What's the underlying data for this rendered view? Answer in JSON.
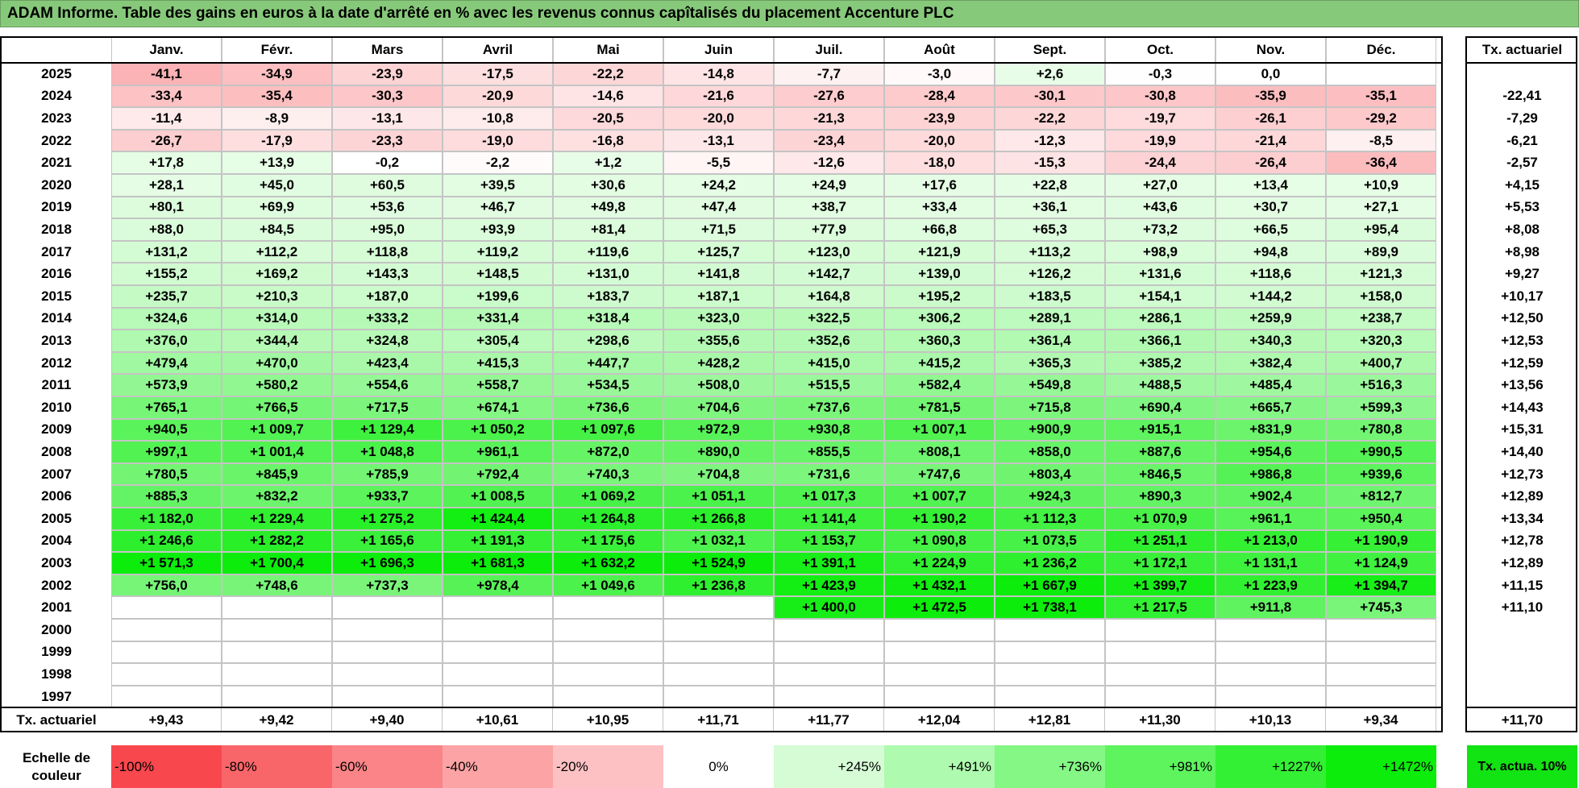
{
  "title": "ADAM Informe. Table des gains en euros à la date d'arrêté en % avec les revenus connus capîtalisés du placement Accenture PLC",
  "months": [
    "Janv.",
    "Févr.",
    "Mars",
    "Avril",
    "Mai",
    "Juin",
    "Juil.",
    "Août",
    "Sept.",
    "Oct.",
    "Nov.",
    "Déc."
  ],
  "tx_header": "Tx. actuariel",
  "rows": [
    {
      "year": "2025",
      "cells": [
        "-41,1",
        "-34,9",
        "-23,9",
        "-17,5",
        "-22,2",
        "-14,8",
        "-7,7",
        "-3,0",
        "+2,6",
        "-0,3",
        "0,0",
        ""
      ],
      "tx": ""
    },
    {
      "year": "2024",
      "cells": [
        "-33,4",
        "-35,4",
        "-30,3",
        "-20,9",
        "-14,6",
        "-21,6",
        "-27,6",
        "-28,4",
        "-30,1",
        "-30,8",
        "-35,9",
        "-35,1"
      ],
      "tx": "-22,41"
    },
    {
      "year": "2023",
      "cells": [
        "-11,4",
        "-8,9",
        "-13,1",
        "-10,8",
        "-20,5",
        "-20,0",
        "-21,3",
        "-23,9",
        "-22,2",
        "-19,7",
        "-26,1",
        "-29,2"
      ],
      "tx": "-7,29"
    },
    {
      "year": "2022",
      "cells": [
        "-26,7",
        "-17,9",
        "-23,3",
        "-19,0",
        "-16,8",
        "-13,1",
        "-23,4",
        "-20,0",
        "-12,3",
        "-19,9",
        "-21,4",
        "-8,5"
      ],
      "tx": "-6,21"
    },
    {
      "year": "2021",
      "cells": [
        "+17,8",
        "+13,9",
        "-0,2",
        "-2,2",
        "+1,2",
        "-5,5",
        "-12,6",
        "-18,0",
        "-15,3",
        "-24,4",
        "-26,4",
        "-36,4"
      ],
      "tx": "-2,57"
    },
    {
      "year": "2020",
      "cells": [
        "+28,1",
        "+45,0",
        "+60,5",
        "+39,5",
        "+30,6",
        "+24,2",
        "+24,9",
        "+17,6",
        "+22,8",
        "+27,0",
        "+13,4",
        "+10,9"
      ],
      "tx": "+4,15"
    },
    {
      "year": "2019",
      "cells": [
        "+80,1",
        "+69,9",
        "+53,6",
        "+46,7",
        "+49,8",
        "+47,4",
        "+38,7",
        "+33,4",
        "+36,1",
        "+43,6",
        "+30,7",
        "+27,1"
      ],
      "tx": "+5,53"
    },
    {
      "year": "2018",
      "cells": [
        "+88,0",
        "+84,5",
        "+95,0",
        "+93,9",
        "+81,4",
        "+71,5",
        "+77,9",
        "+66,8",
        "+65,3",
        "+73,2",
        "+66,5",
        "+95,4"
      ],
      "tx": "+8,08"
    },
    {
      "year": "2017",
      "cells": [
        "+131,2",
        "+112,2",
        "+118,8",
        "+119,2",
        "+119,6",
        "+125,7",
        "+123,0",
        "+121,9",
        "+113,2",
        "+98,9",
        "+94,8",
        "+89,9"
      ],
      "tx": "+8,98"
    },
    {
      "year": "2016",
      "cells": [
        "+155,2",
        "+169,2",
        "+143,3",
        "+148,5",
        "+131,0",
        "+141,8",
        "+142,7",
        "+139,0",
        "+126,2",
        "+131,6",
        "+118,6",
        "+121,3"
      ],
      "tx": "+9,27"
    },
    {
      "year": "2015",
      "cells": [
        "+235,7",
        "+210,3",
        "+187,0",
        "+199,6",
        "+183,7",
        "+187,1",
        "+164,8",
        "+195,2",
        "+183,5",
        "+154,1",
        "+144,2",
        "+158,0"
      ],
      "tx": "+10,17"
    },
    {
      "year": "2014",
      "cells": [
        "+324,6",
        "+314,0",
        "+333,2",
        "+331,4",
        "+318,4",
        "+323,0",
        "+322,5",
        "+306,2",
        "+289,1",
        "+286,1",
        "+259,9",
        "+238,7"
      ],
      "tx": "+12,50"
    },
    {
      "year": "2013",
      "cells": [
        "+376,0",
        "+344,4",
        "+324,8",
        "+305,4",
        "+298,6",
        "+355,6",
        "+352,6",
        "+360,3",
        "+361,4",
        "+366,1",
        "+340,3",
        "+320,3"
      ],
      "tx": "+12,53"
    },
    {
      "year": "2012",
      "cells": [
        "+479,4",
        "+470,0",
        "+423,4",
        "+415,3",
        "+447,7",
        "+428,2",
        "+415,0",
        "+415,2",
        "+365,3",
        "+385,2",
        "+382,4",
        "+400,7"
      ],
      "tx": "+12,59"
    },
    {
      "year": "2011",
      "cells": [
        "+573,9",
        "+580,2",
        "+554,6",
        "+558,7",
        "+534,5",
        "+508,0",
        "+515,5",
        "+582,4",
        "+549,8",
        "+488,5",
        "+485,4",
        "+516,3"
      ],
      "tx": "+13,56"
    },
    {
      "year": "2010",
      "cells": [
        "+765,1",
        "+766,5",
        "+717,5",
        "+674,1",
        "+736,6",
        "+704,6",
        "+737,6",
        "+781,5",
        "+715,8",
        "+690,4",
        "+665,7",
        "+599,3"
      ],
      "tx": "+14,43"
    },
    {
      "year": "2009",
      "cells": [
        "+940,5",
        "+1 009,7",
        "+1 129,4",
        "+1 050,2",
        "+1 097,6",
        "+972,9",
        "+930,8",
        "+1 007,1",
        "+900,9",
        "+915,1",
        "+831,9",
        "+780,8"
      ],
      "tx": "+15,31"
    },
    {
      "year": "2008",
      "cells": [
        "+997,1",
        "+1 001,4",
        "+1 048,8",
        "+961,1",
        "+872,0",
        "+890,0",
        "+855,5",
        "+808,1",
        "+858,0",
        "+887,6",
        "+954,6",
        "+990,5"
      ],
      "tx": "+14,40"
    },
    {
      "year": "2007",
      "cells": [
        "+780,5",
        "+845,9",
        "+785,9",
        "+792,4",
        "+740,3",
        "+704,8",
        "+731,6",
        "+747,6",
        "+803,4",
        "+846,5",
        "+986,8",
        "+939,6"
      ],
      "tx": "+12,73"
    },
    {
      "year": "2006",
      "cells": [
        "+885,3",
        "+832,2",
        "+933,7",
        "+1 008,5",
        "+1 069,2",
        "+1 051,1",
        "+1 017,3",
        "+1 007,7",
        "+924,3",
        "+890,3",
        "+902,4",
        "+812,7"
      ],
      "tx": "+12,89"
    },
    {
      "year": "2005",
      "cells": [
        "+1 182,0",
        "+1 229,4",
        "+1 275,2",
        "+1 424,4",
        "+1 264,8",
        "+1 266,8",
        "+1 141,4",
        "+1 190,2",
        "+1 112,3",
        "+1 070,9",
        "+961,1",
        "+950,4"
      ],
      "tx": "+13,34"
    },
    {
      "year": "2004",
      "cells": [
        "+1 246,6",
        "+1 282,2",
        "+1 165,6",
        "+1 191,3",
        "+1 175,6",
        "+1 032,1",
        "+1 153,7",
        "+1 090,8",
        "+1 073,5",
        "+1 251,1",
        "+1 213,0",
        "+1 190,9"
      ],
      "tx": "+12,78"
    },
    {
      "year": "2003",
      "cells": [
        "+1 571,3",
        "+1 700,4",
        "+1 696,3",
        "+1 681,3",
        "+1 632,2",
        "+1 524,9",
        "+1 391,1",
        "+1 224,9",
        "+1 236,2",
        "+1 172,1",
        "+1 131,1",
        "+1 124,9"
      ],
      "tx": "+12,89"
    },
    {
      "year": "2002",
      "cells": [
        "+756,0",
        "+748,6",
        "+737,3",
        "+978,4",
        "+1 049,6",
        "+1 236,8",
        "+1 423,9",
        "+1 432,1",
        "+1 667,9",
        "+1 399,7",
        "+1 223,9",
        "+1 394,7"
      ],
      "tx": "+11,15"
    },
    {
      "year": "2001",
      "cells": [
        "",
        "",
        "",
        "",
        "",
        "",
        "+1 400,0",
        "+1 472,5",
        "+1 738,1",
        "+1 217,5",
        "+911,8",
        "+745,3"
      ],
      "tx": "+11,10"
    },
    {
      "year": "2000",
      "cells": [
        "",
        "",
        "",
        "",
        "",
        "",
        "",
        "",
        "",
        "",
        "",
        ""
      ],
      "tx": ""
    },
    {
      "year": "1999",
      "cells": [
        "",
        "",
        "",
        "",
        "",
        "",
        "",
        "",
        "",
        "",
        "",
        ""
      ],
      "tx": ""
    },
    {
      "year": "1998",
      "cells": [
        "",
        "",
        "",
        "",
        "",
        "",
        "",
        "",
        "",
        "",
        "",
        ""
      ],
      "tx": ""
    },
    {
      "year": "1997",
      "cells": [
        "",
        "",
        "",
        "",
        "",
        "",
        "",
        "",
        "",
        "",
        "",
        ""
      ],
      "tx": ""
    }
  ],
  "footer": {
    "label": "Tx. actuariel",
    "values": [
      "+9,43",
      "+9,42",
      "+9,40",
      "+10,61",
      "+10,95",
      "+11,71",
      "+11,77",
      "+12,04",
      "+12,81",
      "+11,30",
      "+10,13",
      "+9,34"
    ],
    "total": "+11,70"
  },
  "scale": {
    "label": "Echelle de couleur",
    "items": [
      {
        "label": "-100%",
        "color": "#f8474d",
        "align": "left"
      },
      {
        "label": "-80%",
        "color": "#f9666a",
        "align": "left"
      },
      {
        "label": "-60%",
        "color": "#fa8487",
        "align": "left"
      },
      {
        "label": "-40%",
        "color": "#fba3a5",
        "align": "left"
      },
      {
        "label": "-20%",
        "color": "#fdc1c3",
        "align": "left"
      },
      {
        "label": "0%",
        "color": "#ffffff",
        "align": "center"
      },
      {
        "label": "+245%",
        "color": "#d6fcd6",
        "align": "right"
      },
      {
        "label": "+491%",
        "color": "#aefaae",
        "align": "right"
      },
      {
        "label": "+736%",
        "color": "#85f785",
        "align": "right"
      },
      {
        "label": "+981%",
        "color": "#5df45d",
        "align": "right"
      },
      {
        "label": "+1227%",
        "color": "#34f034",
        "align": "right"
      },
      {
        "label": "+1472%",
        "color": "#0ced0c",
        "align": "right"
      }
    ],
    "tx_label": "Tx. actua. 10%",
    "tx_color": "#12e312"
  }
}
